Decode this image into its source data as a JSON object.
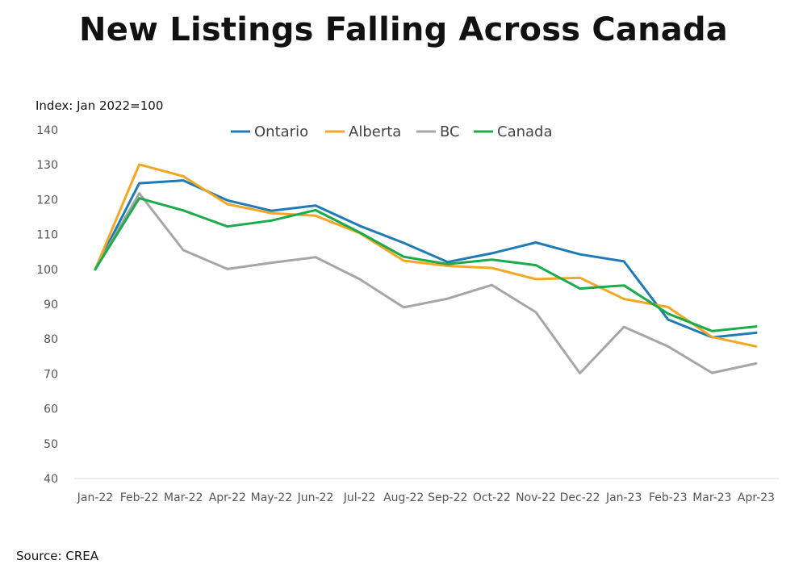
{
  "chart_data": {
    "type": "line",
    "title": "New Listings Falling Across Canada",
    "ylabel": "Index: Jan 2022=100",
    "xlabel": "",
    "source": "Source: CREA",
    "categories": [
      "Jan-22",
      "Feb-22",
      "Mar-22",
      "Apr-22",
      "May-22",
      "Jun-22",
      "Jul-22",
      "Aug-22",
      "Sep-22",
      "Oct-22",
      "Nov-22",
      "Dec-22",
      "Jan-23",
      "Feb-23",
      "Mar-23",
      "Apr-23"
    ],
    "ylim": [
      40,
      140
    ],
    "yticks": [
      140,
      130,
      120,
      110,
      100,
      90,
      80,
      70,
      60,
      50,
      40
    ],
    "grid": false,
    "legend_position": "top-center",
    "series": [
      {
        "name": "Ontario",
        "color": "#1f7bb6",
        "values": [
          100,
          124.7,
          125.5,
          119.8,
          116.8,
          118.3,
          112.5,
          107.6,
          102.1,
          104.6,
          107.7,
          104.3,
          102.3,
          85.6,
          80.5,
          81.8
        ]
      },
      {
        "name": "Alberta",
        "color": "#f5a623",
        "values": [
          100,
          130.1,
          126.7,
          118.7,
          116.1,
          115.4,
          110.4,
          102.5,
          101.0,
          100.4,
          97.2,
          97.6,
          91.5,
          89.2,
          80.6,
          77.9
        ]
      },
      {
        "name": "BC",
        "color": "#a6a6a6",
        "values": [
          100,
          121.8,
          105.5,
          100.1,
          101.9,
          103.5,
          97.2,
          89.1,
          91.6,
          95.5,
          87.7,
          70.2,
          83.5,
          77.9,
          70.3,
          73.0
        ]
      },
      {
        "name": "Canada",
        "color": "#1aab4b",
        "values": [
          100,
          120.4,
          116.9,
          112.3,
          114.0,
          117.0,
          110.6,
          103.6,
          101.5,
          102.8,
          101.2,
          94.5,
          95.4,
          87.3,
          82.3,
          83.6
        ]
      }
    ]
  }
}
